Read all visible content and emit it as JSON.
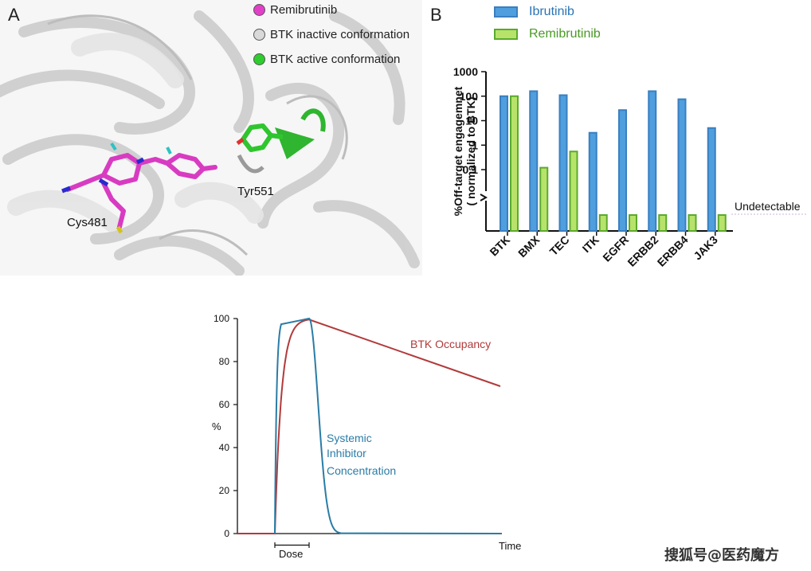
{
  "panel_a": {
    "letter": "A",
    "legend": [
      {
        "label": "Remibrutinib",
        "color": "#e23fc8"
      },
      {
        "label": "BTK inactive conformation",
        "color": "#d9d9d9"
      },
      {
        "label": "BTK active conformation",
        "color": "#2ecc2e"
      }
    ],
    "labels": {
      "tyr": "Tyr551",
      "cys": "Cys481"
    }
  },
  "chart_data": [
    {
      "type": "bar",
      "panel_letter": "B",
      "ylabel_line1": "%Off-target engagemnet",
      "ylabel_line2": "( normalized to BTK)",
      "yscale": "log",
      "ylim": [
        0.03,
        1000
      ],
      "yticks": [
        "0.1",
        "1",
        "10",
        "100",
        "1000"
      ],
      "categories": [
        "BTK",
        "BMX",
        "TEC",
        "ITK",
        "EGFR",
        "ERBB2",
        "ERBB4",
        "JAK3"
      ],
      "series": [
        {
          "name": "Ibrutinib",
          "color": "#3a7fc0",
          "fill": "#4f9ede",
          "values": [
            100,
            160,
            110,
            3.2,
            27,
            160,
            75,
            5
          ]
        },
        {
          "name": "Remibrutinib",
          "color": "#5aaa2e",
          "fill": "#b7e36a",
          "values": [
            100,
            0.12,
            0.55,
            null,
            null,
            null,
            null,
            null
          ]
        }
      ],
      "undetectable_label": "Undetectable",
      "undetectable_series": "Remibrutinib",
      "legend_position": "top"
    },
    {
      "type": "line",
      "ylabel": "%",
      "xlabel": "Time",
      "ylim": [
        0,
        100
      ],
      "yticks": [
        "0",
        "20",
        "40",
        "60",
        "80",
        "100"
      ],
      "dose_label": "Dose",
      "series": [
        {
          "name": "BTK Occupancy",
          "color": "#b23a3a"
        },
        {
          "name": "Systemic Inhibitor Concentration",
          "label_lines": [
            "Systemic",
            "Inhibitor",
            "Concentration"
          ],
          "color": "#2a7ca6"
        }
      ]
    }
  ],
  "watermark": "搜狐号@医药魔方"
}
